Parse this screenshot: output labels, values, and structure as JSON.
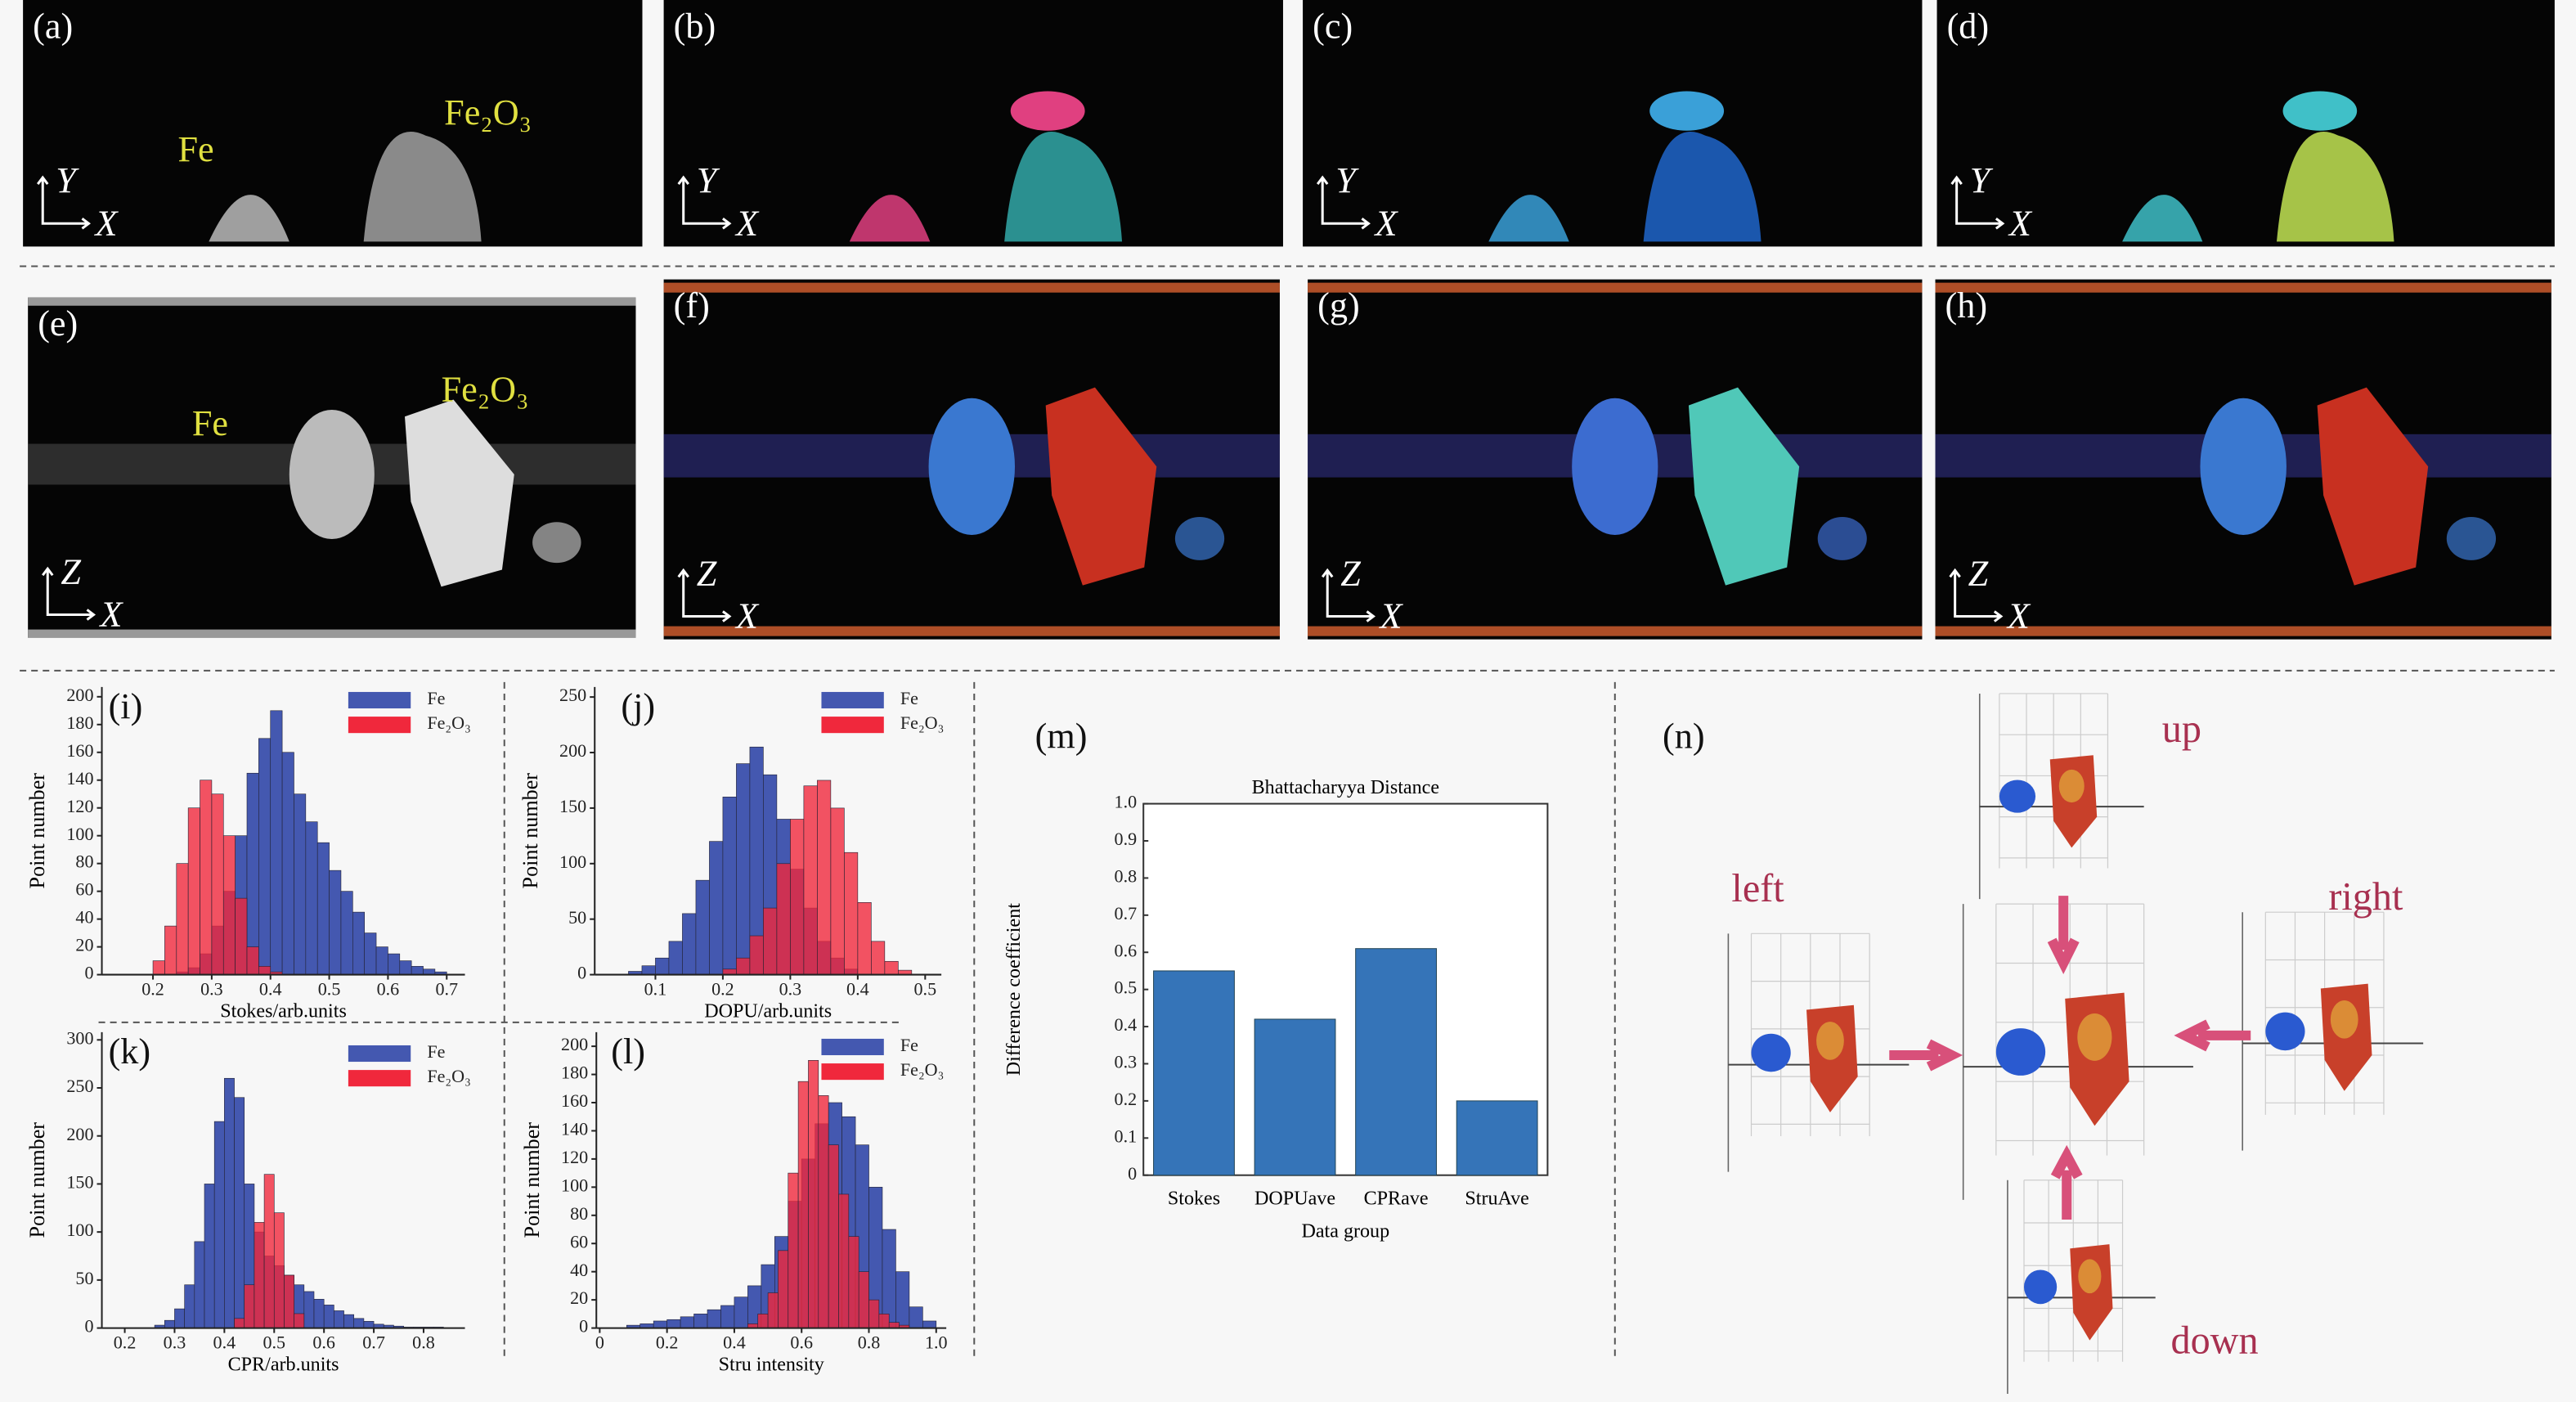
{
  "image_panels": [
    {
      "label": "(a)",
      "axes": [
        "Y",
        "X"
      ],
      "annotations": [
        "Fe",
        "Fe₂O₃"
      ]
    },
    {
      "label": "(b)",
      "axes": [
        "Y",
        "X"
      ]
    },
    {
      "label": "(c)",
      "axes": [
        "Y",
        "X"
      ]
    },
    {
      "label": "(d)",
      "axes": [
        "Y",
        "X"
      ]
    },
    {
      "label": "(e)",
      "axes": [
        "Z",
        "X"
      ],
      "annotations": [
        "Fe",
        "Fe₂O₃"
      ]
    },
    {
      "label": "(f)",
      "axes": [
        "Z",
        "X"
      ]
    },
    {
      "label": "(g)",
      "axes": [
        "Z",
        "X"
      ]
    },
    {
      "label": "(h)",
      "axes": [
        "Z",
        "X"
      ]
    }
  ],
  "chart_data": [
    {
      "type": "histogram",
      "label": "(i)",
      "xlabel": "Stokes/arb.units",
      "ylabel": "Point number",
      "xlim": [
        0.113,
        0.731
      ],
      "ylim": [
        0,
        207
      ],
      "xticks": [
        0.2,
        0.3,
        0.4,
        0.5,
        0.6,
        0.7
      ],
      "yticks": [
        0,
        20,
        40,
        60,
        80,
        100,
        120,
        140,
        160,
        180,
        200
      ],
      "series": [
        {
          "name": "Fe",
          "color": "#4458b0",
          "bins": [
            0.24,
            0.26,
            0.28,
            0.3,
            0.32,
            0.34,
            0.36,
            0.38,
            0.4,
            0.42,
            0.44,
            0.46,
            0.48,
            0.5,
            0.52,
            0.54,
            0.56,
            0.58,
            0.6,
            0.62,
            0.64,
            0.66,
            0.68,
            0.7
          ],
          "values": [
            2,
            5,
            15,
            35,
            60,
            100,
            145,
            170,
            190,
            160,
            130,
            110,
            95,
            75,
            60,
            45,
            30,
            20,
            15,
            10,
            6,
            4,
            2
          ]
        },
        {
          "name": "Fe₂O₃",
          "color": "#f0283c",
          "bins": [
            0.2,
            0.22,
            0.24,
            0.26,
            0.28,
            0.3,
            0.32,
            0.34,
            0.36,
            0.38,
            0.4,
            0.42
          ],
          "values": [
            10,
            35,
            80,
            120,
            140,
            130,
            100,
            55,
            20,
            6,
            2
          ]
        }
      ]
    },
    {
      "type": "histogram",
      "label": "(j)",
      "xlabel": "DOPU/arb.units",
      "ylabel": "Point number",
      "xlim": [
        0.01,
        0.524
      ],
      "ylim": [
        0,
        259
      ],
      "xticks": [
        0.1,
        0.2,
        0.3,
        0.4,
        0.5
      ],
      "yticks": [
        0,
        50,
        100,
        150,
        200,
        250
      ],
      "series": [
        {
          "name": "Fe",
          "color": "#4458b0",
          "bins": [
            0.06,
            0.08,
            0.1,
            0.12,
            0.14,
            0.16,
            0.18,
            0.2,
            0.22,
            0.24,
            0.26,
            0.28,
            0.3,
            0.32,
            0.34,
            0.36,
            0.38,
            0.4
          ],
          "values": [
            3,
            8,
            15,
            30,
            55,
            85,
            120,
            160,
            190,
            205,
            180,
            140,
            95,
            60,
            30,
            15,
            5
          ]
        },
        {
          "name": "Fe₂O₃",
          "color": "#f0283c",
          "bins": [
            0.2,
            0.22,
            0.24,
            0.26,
            0.28,
            0.3,
            0.32,
            0.34,
            0.36,
            0.38,
            0.4,
            0.42,
            0.44,
            0.46,
            0.48
          ],
          "values": [
            5,
            15,
            35,
            60,
            100,
            140,
            170,
            175,
            150,
            110,
            65,
            30,
            12,
            4
          ]
        }
      ]
    },
    {
      "type": "histogram",
      "label": "(k)",
      "xlabel": "CPR/arb.units",
      "ylabel": "Point number",
      "xlim": [
        0.154,
        0.883
      ],
      "ylim": [
        0,
        308
      ],
      "xticks": [
        0.2,
        0.3,
        0.4,
        0.5,
        0.6,
        0.7,
        0.8
      ],
      "yticks": [
        0,
        50,
        100,
        150,
        200,
        250,
        300
      ],
      "series": [
        {
          "name": "Fe",
          "color": "#4458b0",
          "bins": [
            0.26,
            0.28,
            0.3,
            0.32,
            0.34,
            0.36,
            0.38,
            0.4,
            0.42,
            0.44,
            0.46,
            0.48,
            0.5,
            0.52,
            0.54,
            0.56,
            0.58,
            0.6,
            0.62,
            0.64,
            0.66,
            0.68,
            0.7,
            0.72,
            0.74,
            0.76,
            0.78,
            0.8,
            0.82,
            0.84
          ],
          "values": [
            3,
            8,
            20,
            45,
            90,
            150,
            215,
            260,
            240,
            150,
            100,
            75,
            65,
            55,
            45,
            38,
            30,
            24,
            18,
            14,
            10,
            7,
            4,
            3,
            2,
            1,
            1,
            1,
            1
          ]
        },
        {
          "name": "Fe₂O₃",
          "color": "#f0283c",
          "bins": [
            0.42,
            0.44,
            0.46,
            0.48,
            0.5,
            0.52,
            0.54,
            0.56
          ],
          "values": [
            10,
            45,
            110,
            160,
            120,
            55,
            15
          ]
        }
      ]
    },
    {
      "type": "histogram",
      "label": "(l)",
      "xlabel": "Stru intensity",
      "ylabel": "Point number",
      "xlim": [
        -0.01,
        1.03
      ],
      "ylim": [
        0,
        210
      ],
      "xticks": [
        0,
        0.2,
        0.4,
        0.6,
        0.8,
        {
          "value": 1,
          "label": "1.0"
        }
      ],
      "yticks": [
        0,
        20,
        40,
        60,
        80,
        100,
        120,
        140,
        160,
        180,
        200
      ],
      "series": [
        {
          "name": "Fe",
          "color": "#4458b0",
          "bins": [
            0.08,
            0.12,
            0.16,
            0.2,
            0.24,
            0.28,
            0.32,
            0.36,
            0.4,
            0.44,
            0.48,
            0.52,
            0.56,
            0.6,
            0.64,
            0.68,
            0.72,
            0.76,
            0.8,
            0.84,
            0.88,
            0.92,
            0.96,
            1.0
          ],
          "values": [
            2,
            3,
            5,
            6,
            8,
            10,
            13,
            16,
            22,
            30,
            45,
            65,
            90,
            120,
            145,
            160,
            150,
            130,
            100,
            70,
            40,
            15,
            5
          ]
        },
        {
          "name": "Fe₂O₃",
          "color": "#f0283c",
          "bins": [
            0.44,
            0.47,
            0.5,
            0.53,
            0.56,
            0.59,
            0.62,
            0.65,
            0.68,
            0.71,
            0.74,
            0.77,
            0.8,
            0.83,
            0.86,
            0.89,
            0.92
          ],
          "values": [
            3,
            10,
            25,
            55,
            110,
            175,
            190,
            165,
            130,
            95,
            65,
            40,
            20,
            10,
            4,
            2
          ]
        }
      ]
    },
    {
      "type": "bar",
      "label": "(m)",
      "title": "Bhattacharyya Distance",
      "xlabel": "Data group",
      "ylabel": "Difference coefficient",
      "categories": [
        "Stokes",
        "DOPUave",
        "CPRave",
        "StruAve"
      ],
      "values": [
        0.55,
        0.42,
        0.61,
        0.2
      ],
      "color": "#3574b8",
      "ylim": [
        0,
        1
      ],
      "yticks": [
        0,
        0.1,
        0.2,
        0.3,
        0.4,
        0.5,
        0.6,
        0.7,
        0.8,
        0.9,
        {
          "value": 1,
          "label": "1.0"
        }
      ]
    }
  ],
  "views": {
    "label": "(n)",
    "directions": [
      "up",
      "left",
      "right",
      "down"
    ]
  }
}
